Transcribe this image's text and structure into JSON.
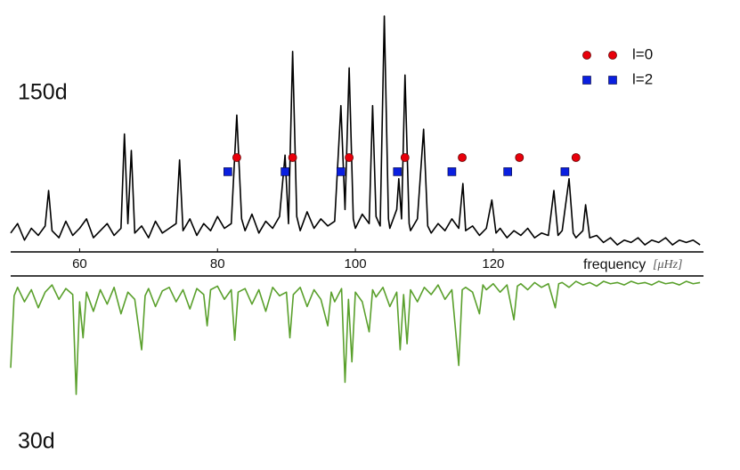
{
  "chart_data": [
    {
      "type": "line",
      "label": "150d",
      "color": "#000000",
      "xlim": [
        50,
        150.5
      ],
      "ylim": [
        0,
        100
      ],
      "xticks": [
        60,
        80,
        100,
        120
      ],
      "xlabel": "frequency",
      "xunit": "[μHz]",
      "x": [
        50,
        51,
        52,
        53,
        54,
        55,
        55.5,
        56,
        57,
        58,
        59,
        60,
        61,
        62,
        63,
        64,
        65,
        66,
        66.5,
        67,
        67.5,
        68,
        69,
        70,
        71,
        72,
        73,
        74,
        74.5,
        75,
        76,
        77,
        78,
        79,
        80,
        81,
        82,
        82.8,
        83.5,
        84,
        85,
        86,
        87,
        88,
        89,
        89.8,
        90.3,
        90.9,
        91.5,
        92,
        93,
        94,
        95,
        96,
        97,
        97.9,
        98.5,
        99.1,
        99.7,
        100,
        101,
        102,
        102.5,
        103,
        103.6,
        104.2,
        104.8,
        105,
        106,
        106.3,
        106.7,
        107.2,
        107.8,
        108,
        109,
        109.9,
        110.5,
        111,
        112,
        113,
        114,
        115,
        115.6,
        116,
        117,
        118,
        119,
        119.8,
        120.4,
        121,
        122,
        123,
        124,
        125,
        126,
        127,
        128,
        128.8,
        129.4,
        130,
        131,
        131.6,
        132,
        133,
        133.4,
        134,
        135,
        136,
        137,
        138,
        139,
        140,
        141,
        142,
        143,
        144,
        145,
        146,
        147,
        148,
        149,
        150
      ],
      "values": [
        8,
        12,
        5,
        10,
        7,
        11,
        26,
        9,
        6,
        13,
        7,
        10,
        14,
        6,
        9,
        12,
        7,
        10,
        50,
        12,
        43,
        8,
        11,
        6,
        13,
        8,
        10,
        12,
        39,
        9,
        14,
        7,
        12,
        9,
        15,
        10,
        12,
        58,
        14,
        9,
        16,
        8,
        13,
        10,
        15,
        41,
        12,
        85,
        15,
        9,
        17,
        10,
        14,
        11,
        13,
        62,
        18,
        78,
        14,
        10,
        16,
        12,
        62,
        15,
        11,
        100,
        14,
        10,
        18,
        31,
        14,
        75,
        12,
        9,
        14,
        52,
        11,
        8,
        12,
        9,
        14,
        10,
        29,
        9,
        11,
        7,
        10,
        22,
        8,
        10,
        6,
        9,
        7,
        10,
        6,
        8,
        7,
        26,
        7,
        9,
        31,
        8,
        6,
        9,
        20,
        6,
        7,
        4,
        6,
        3,
        5,
        4,
        6,
        3,
        5,
        4,
        6,
        3,
        5,
        4,
        5,
        3
      ],
      "markers": [
        {
          "name": "l=0",
          "marker": "circle",
          "color": "#e8000b",
          "x": [
            82.8,
            90.9,
            99.1,
            107.2,
            115.5,
            123.8,
            132.0
          ],
          "values": [
            40,
            40,
            40,
            40,
            40,
            40,
            40
          ]
        },
        {
          "name": "l=2",
          "marker": "square",
          "color": "#0a1fe0",
          "x": [
            81.5,
            89.8,
            97.9,
            106.1,
            114.0,
            122.1,
            130.4
          ],
          "values": [
            34,
            34,
            34,
            34,
            34,
            34,
            34
          ]
        }
      ]
    },
    {
      "type": "line",
      "label": "30d",
      "color": "#5aa02c",
      "inverted": true,
      "xlim": [
        50,
        150.5
      ],
      "ylim": [
        0,
        100
      ],
      "x": [
        50,
        50.5,
        51,
        52,
        53,
        54,
        55,
        56,
        57,
        58,
        59,
        59.5,
        60,
        60.5,
        61,
        62,
        63,
        64,
        65,
        66,
        67,
        68,
        69,
        69.5,
        70,
        71,
        72,
        73,
        74,
        75,
        76,
        77,
        78,
        78.5,
        79,
        80,
        81,
        82,
        82.5,
        83,
        84,
        85,
        86,
        87,
        88,
        89,
        90,
        90.5,
        91,
        92,
        93,
        94,
        95,
        96,
        96.5,
        97,
        98,
        98.5,
        99,
        99.5,
        100,
        101,
        102,
        102.5,
        103,
        104,
        105,
        106,
        106.5,
        107,
        107.5,
        108,
        109,
        110,
        111,
        112,
        113,
        114,
        115,
        115.5,
        116,
        117,
        118,
        118.5,
        119,
        120,
        121,
        122,
        123,
        123.5,
        124,
        125,
        126,
        127,
        128,
        129,
        129.5,
        130,
        131,
        132,
        133,
        134,
        135,
        136,
        137,
        138,
        139,
        140,
        141,
        142,
        143,
        144,
        145,
        146,
        147,
        148,
        149,
        150
      ],
      "values": [
        75,
        15,
        8,
        20,
        10,
        25,
        12,
        6,
        18,
        9,
        14,
        97,
        20,
        50,
        12,
        28,
        10,
        22,
        8,
        30,
        12,
        18,
        60,
        15,
        9,
        24,
        11,
        8,
        20,
        10,
        26,
        9,
        14,
        40,
        10,
        7,
        18,
        10,
        52,
        12,
        9,
        22,
        10,
        28,
        8,
        15,
        12,
        50,
        14,
        8,
        24,
        10,
        18,
        40,
        12,
        20,
        9,
        87,
        18,
        70,
        12,
        20,
        45,
        10,
        16,
        8,
        24,
        12,
        60,
        14,
        55,
        10,
        20,
        8,
        14,
        6,
        18,
        10,
        73,
        10,
        8,
        12,
        30,
        6,
        10,
        5,
        12,
        6,
        35,
        7,
        5,
        10,
        4,
        8,
        5,
        25,
        5,
        4,
        8,
        3,
        6,
        4,
        7,
        3,
        5,
        4,
        6,
        3,
        5,
        4,
        6,
        3,
        5,
        4,
        6,
        3,
        5,
        4
      ]
    }
  ]
}
